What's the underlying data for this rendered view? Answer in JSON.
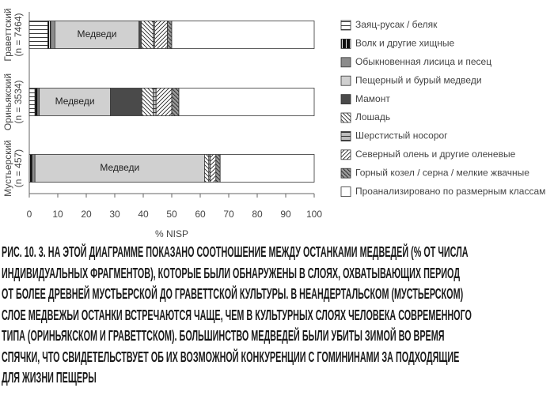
{
  "chart_data": {
    "type": "stacked-barh",
    "categories": [
      "Граветтский",
      "Ориньякский",
      "Мустьерский"
    ],
    "category_notes": [
      "(n = 7464)",
      "(n = 3534)",
      "(n = 457)"
    ],
    "bar_labels": [
      "Медведи",
      "Медведи",
      "Медведи"
    ],
    "xlabel": "% NISP",
    "xlim": [
      0,
      100
    ],
    "xticks": [
      0,
      10,
      20,
      30,
      40,
      50,
      60,
      70,
      80,
      90,
      100
    ],
    "series": [
      {
        "name": "Заяц-русак / беляк",
        "color": "#ffffff",
        "pattern": "hlines",
        "values": [
          6.5,
          2,
          0
        ]
      },
      {
        "name": "Волк и другие хищные",
        "color": "#111111",
        "pattern": "vlines",
        "values": [
          1,
          1,
          1
        ]
      },
      {
        "name": "Обыкновенная лисица и песец",
        "color": "#8c8c8c",
        "pattern": "solid",
        "values": [
          1.5,
          0.5,
          1
        ]
      },
      {
        "name": "Пещерный и бурый медведи",
        "color": "#d0d0d0",
        "pattern": "solid",
        "values": [
          29.5,
          25,
          59.5
        ]
      },
      {
        "name": "Мамонт",
        "color": "#4a4a4a",
        "pattern": "solid",
        "values": [
          0.8,
          11,
          0
        ]
      },
      {
        "name": "Лошадь",
        "color": "#ffffff",
        "pattern": "diagback",
        "values": [
          4.2,
          4,
          1.5
        ]
      },
      {
        "name": "Шерстистый носорог",
        "color": "#bdbdbd",
        "pattern": "hlines",
        "values": [
          0.5,
          1,
          0.5
        ]
      },
      {
        "name": "Северный олень и другие оленевые",
        "color": "#ffffff",
        "pattern": "diag",
        "values": [
          4.5,
          5.5,
          2
        ]
      },
      {
        "name": "Горный козел / серна / мелкие жвачные",
        "color": "#9a9a9a",
        "pattern": "diagback",
        "values": [
          1.5,
          2.5,
          1.5
        ]
      },
      {
        "name": "Проанализировано по размерным классам",
        "color": "#ffffff",
        "pattern": "solid",
        "values": [
          50,
          47.5,
          33
        ]
      }
    ]
  },
  "caption_lines": [
    "РИС. 10. 3. НА ЭТОЙ ДИАГРАММЕ ПОКАЗАНО СООТНОШЕНИЕ МЕЖДУ ОСТАНКАМИ МЕДВЕДЕЙ (% ОТ ЧИСЛА",
    "ИНДИВИДУАЛЬНЫХ ФРАГМЕНТОВ), КОТОРЫЕ БЫЛИ ОБНАРУЖЕНЫ В СЛОЯХ, ОХВАТЫВАЮЩИХ ПЕРИОД",
    "ОТ БОЛЕЕ ДРЕВНЕЙ МУСТЬЕРСКОЙ ДО ГРАВЕТТСКОЙ КУЛЬТУРЫ. В НЕАНДЕРТАЛЬСКОМ (МУСТЬЕРСКОМ)",
    "СЛОЕ МЕДВЕЖЬИ ОСТАНКИ ВСТРЕЧАЮТСЯ ЧАЩЕ, ЧЕМ В КУЛЬТУРНЫХ СЛОЯХ ЧЕЛОВЕКА СОВРЕМЕННОГО",
    "ТИПА (ОРИНЬЯКСКОМ И ГРАВЕТТСКОМ). БОЛЬШИНСТВО МЕДВЕДЕЙ БЫЛИ УБИТЫ ЗИМОЙ ВО ВРЕМЯ",
    "СПЯЧКИ, ЧТО СВИДЕТЕЛЬСТВУЕТ ОБ ИХ ВОЗМОЖНОЙ КОНКУРЕНЦИИ С ГОМИНИНАМИ ЗА ПОДХОДЯЩИЕ",
    "ДЛЯ ЖИЗНИ ПЕЩЕРЫ"
  ]
}
